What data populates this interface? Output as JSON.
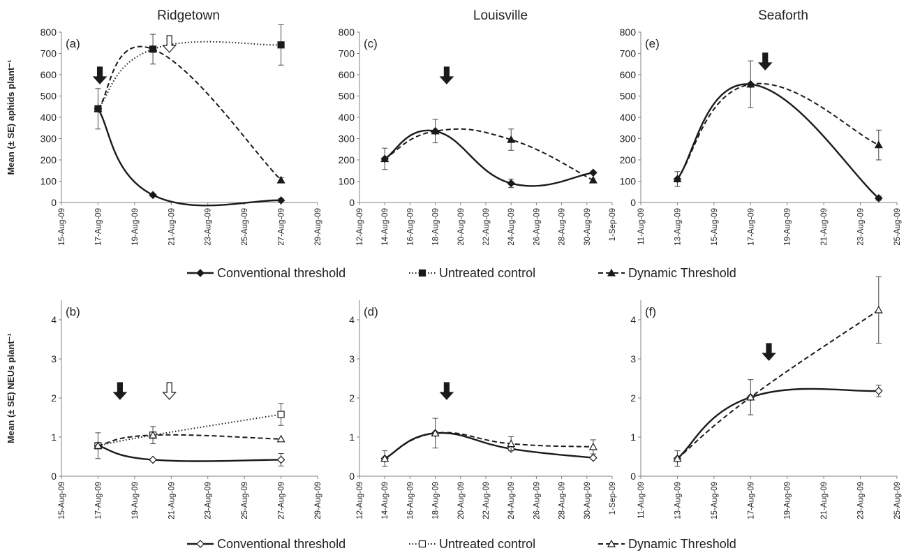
{
  "chart_data": [
    {
      "panel": "a",
      "site": "Ridgetown",
      "row": "aphids",
      "type": "line",
      "ylabel": "Mean (± SE) aphids plant⁻¹",
      "ylim": [
        0,
        800
      ],
      "yticks": [
        0,
        100,
        200,
        300,
        400,
        500,
        600,
        700,
        800
      ],
      "xticks": [
        "15-Aug-09",
        "17-Aug-09",
        "19-Aug-09",
        "21-Aug-09",
        "23-Aug-09",
        "25-Aug-09",
        "27-Aug-09",
        "29-Aug-09"
      ],
      "x_range": [
        0,
        14
      ],
      "series": [
        {
          "name": "Conventional threshold",
          "style": "solid",
          "marker": "diamond-filled",
          "x": [
            2,
            5,
            12
          ],
          "y": [
            440,
            35,
            10
          ],
          "se": [
            null,
            null,
            8
          ]
        },
        {
          "name": "Untreated control",
          "style": "dotted",
          "marker": "square-filled",
          "x": [
            2,
            5,
            12
          ],
          "y": [
            440,
            720,
            740
          ],
          "se": [
            null,
            70,
            95
          ]
        },
        {
          "name": "Dynamic Threshold",
          "style": "dashed",
          "marker": "triangle-filled",
          "x": [
            2,
            5,
            12
          ],
          "y": [
            440,
            720,
            105
          ],
          "se": [
            95,
            null,
            12
          ]
        }
      ],
      "arrows": [
        {
          "x": 2.1,
          "style": "filled"
        },
        {
          "x": 5.9,
          "style": "hollow"
        }
      ]
    },
    {
      "panel": "c",
      "site": "Louisville",
      "row": "aphids",
      "type": "line",
      "ylim": [
        0,
        800
      ],
      "yticks": [
        0,
        100,
        200,
        300,
        400,
        500,
        600,
        700,
        800
      ],
      "xticks": [
        "12-Aug-09",
        "14-Aug-09",
        "16-Aug-09",
        "18-Aug-09",
        "20-Aug-09",
        "22-Aug-09",
        "24-Aug-09",
        "26-Aug-09",
        "28-Aug-09",
        "30-Aug-09",
        "1-Sep-09"
      ],
      "x_range": [
        0,
        20
      ],
      "series": [
        {
          "name": "Conventional threshold",
          "style": "solid",
          "marker": "diamond-filled",
          "x": [
            2,
            6,
            12,
            18.5
          ],
          "y": [
            205,
            335,
            90,
            140
          ],
          "se": [
            50,
            55,
            20,
            null
          ]
        },
        {
          "name": "Dynamic Threshold",
          "style": "dashed",
          "marker": "triangle-filled",
          "x": [
            2,
            6,
            12,
            18.5
          ],
          "y": [
            205,
            335,
            295,
            105
          ],
          "se": [
            null,
            null,
            50,
            null
          ]
        }
      ],
      "arrows": [
        {
          "x": 6.9,
          "style": "filled"
        }
      ]
    },
    {
      "panel": "e",
      "site": "Seaforth",
      "row": "aphids",
      "type": "line",
      "ylim": [
        0,
        800
      ],
      "yticks": [
        0,
        100,
        200,
        300,
        400,
        500,
        600,
        700,
        800
      ],
      "xticks": [
        "11-Aug-09",
        "13-Aug-09",
        "15-Aug-09",
        "17-Aug-09",
        "19-Aug-09",
        "21-Aug-09",
        "23-Aug-09",
        "25-Aug-09"
      ],
      "x_range": [
        0,
        14
      ],
      "series": [
        {
          "name": "Conventional threshold",
          "style": "solid",
          "marker": "diamond-filled",
          "x": [
            2,
            6,
            13
          ],
          "y": [
            110,
            555,
            20
          ],
          "se": [
            35,
            110,
            10
          ]
        },
        {
          "name": "Dynamic Threshold",
          "style": "dashed",
          "marker": "triangle-filled",
          "x": [
            2,
            6,
            13
          ],
          "y": [
            110,
            555,
            270
          ],
          "se": [
            null,
            null,
            70
          ]
        }
      ],
      "arrows": [
        {
          "x": 6.8,
          "style": "filled"
        }
      ]
    },
    {
      "panel": "b",
      "site": "Ridgetown",
      "row": "neus",
      "type": "line",
      "ylabel": "Mean (± SE) NEUs plant⁻¹",
      "ylim": [
        0,
        4.5
      ],
      "yticks": [
        0,
        1,
        2,
        3,
        4
      ],
      "xticks": [
        "15-Aug-09",
        "17-Aug-09",
        "19-Aug-09",
        "21-Aug-09",
        "23-Aug-09",
        "25-Aug-09",
        "27-Aug-09",
        "29-Aug-09"
      ],
      "x_range": [
        0,
        14
      ],
      "series": [
        {
          "name": "Conventional threshold",
          "style": "solid",
          "marker": "diamond-open",
          "x": [
            2,
            5,
            12
          ],
          "y": [
            0.78,
            0.42,
            0.42
          ],
          "se": [
            0.33,
            null,
            0.16
          ]
        },
        {
          "name": "Untreated control",
          "style": "dotted",
          "marker": "square-open",
          "x": [
            2,
            5,
            12
          ],
          "y": [
            0.78,
            1.05,
            1.58
          ],
          "se": [
            null,
            0.22,
            0.28
          ]
        },
        {
          "name": "Dynamic Threshold",
          "style": "dashed",
          "marker": "triangle-open",
          "x": [
            2,
            5,
            12
          ],
          "y": [
            0.78,
            1.05,
            0.95
          ],
          "se": [
            null,
            null,
            null
          ]
        }
      ],
      "arrows": [
        {
          "x": 3.2,
          "style": "filled"
        },
        {
          "x": 5.9,
          "style": "hollow"
        }
      ]
    },
    {
      "panel": "d",
      "site": "Louisville",
      "row": "neus",
      "type": "line",
      "ylim": [
        0,
        4.5
      ],
      "yticks": [
        0,
        1,
        2,
        3,
        4
      ],
      "xticks": [
        "12-Aug-09",
        "14-Aug-09",
        "16-Aug-09",
        "18-Aug-09",
        "20-Aug-09",
        "22-Aug-09",
        "24-Aug-09",
        "26-Aug-09",
        "28-Aug-09",
        "30-Aug-09",
        "1-Sep-09"
      ],
      "x_range": [
        0,
        20
      ],
      "series": [
        {
          "name": "Conventional threshold",
          "style": "solid",
          "marker": "diamond-open",
          "x": [
            2,
            6,
            12,
            18.5
          ],
          "y": [
            0.45,
            1.1,
            0.7,
            0.47
          ],
          "se": [
            0.2,
            0.38,
            null,
            null
          ]
        },
        {
          "name": "Dynamic Threshold",
          "style": "dashed",
          "marker": "triangle-open",
          "x": [
            2,
            6,
            12,
            18.5
          ],
          "y": [
            0.45,
            1.1,
            0.83,
            0.75
          ],
          "se": [
            null,
            null,
            0.18,
            0.18
          ]
        }
      ],
      "arrows": [
        {
          "x": 6.9,
          "style": "filled"
        }
      ]
    },
    {
      "panel": "f",
      "site": "Seaforth",
      "row": "neus",
      "type": "line",
      "ylim": [
        0,
        4.5
      ],
      "yticks": [
        0,
        1,
        2,
        3,
        4
      ],
      "xticks": [
        "11-Aug-09",
        "13-Aug-09",
        "15-Aug-09",
        "17-Aug-09",
        "19-Aug-09",
        "21-Aug-09",
        "23-Aug-09",
        "25-Aug-09"
      ],
      "x_range": [
        0,
        14
      ],
      "series": [
        {
          "name": "Conventional threshold",
          "style": "solid",
          "marker": "diamond-open",
          "x": [
            2,
            6,
            13
          ],
          "y": [
            0.45,
            2.02,
            2.18
          ],
          "se": [
            0.2,
            0.45,
            0.15
          ]
        },
        {
          "name": "Dynamic Threshold",
          "style": "dashed",
          "marker": "triangle-open",
          "x": [
            2,
            6,
            13
          ],
          "y": [
            0.45,
            2.02,
            4.25
          ],
          "se": [
            null,
            null,
            0.85
          ]
        }
      ],
      "arrows": [
        {
          "x": 7,
          "style": "filled"
        }
      ]
    }
  ],
  "legends": {
    "top": [
      "Conventional threshold",
      "Untreated control",
      "Dynamic Threshold"
    ],
    "bottom": [
      "Conventional threshold",
      "Untreated control",
      "Dynamic Threshold"
    ]
  },
  "colors": {
    "line": "#1a1a1a",
    "axis": "#808080",
    "arrow": "#1a1a1a"
  }
}
